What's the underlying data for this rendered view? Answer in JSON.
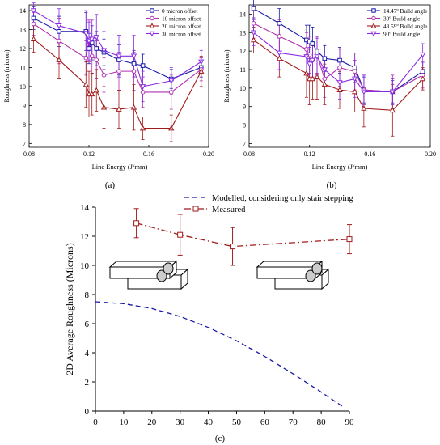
{
  "chart_data": [
    {
      "panel_label": "(a)",
      "type": "line",
      "xlabel": "Line Energy (J/mm)",
      "ylabel": "Roughness (micron)",
      "xlim": [
        0.08,
        0.2
      ],
      "ylim": [
        6.8,
        14.3
      ],
      "xticks": [
        "0.08",
        "0.12",
        "0.16",
        "0.20"
      ],
      "xtick_values": [
        0.08,
        0.12,
        0.16,
        0.2
      ],
      "yticks": [
        "7",
        "8",
        "9",
        "10",
        "11",
        "12",
        "13",
        "14"
      ],
      "ytick_values": [
        7,
        8,
        9,
        10,
        11,
        12,
        13,
        14
      ],
      "legend_position": "top-right",
      "series": [
        {
          "name": "0 micron offset",
          "color": "#1a1aa6",
          "marker": "square",
          "x": [
            0.083,
            0.1,
            0.118,
            0.12,
            0.122,
            0.125,
            0.13,
            0.14,
            0.15,
            0.156,
            0.175,
            0.195
          ],
          "y": [
            13.6,
            12.9,
            12.9,
            12.0,
            12.3,
            12.0,
            11.8,
            11.4,
            11.2,
            11.1,
            10.4,
            11.0
          ],
          "err": [
            0.6,
            0.8,
            1.0,
            0.8,
            0.9,
            0.9,
            0.7,
            0.8,
            0.7,
            0.6,
            0.5,
            0.5
          ]
        },
        {
          "name": "10 micron offset",
          "color": "#b030b0",
          "marker": "circle",
          "x": [
            0.083,
            0.1,
            0.118,
            0.12,
            0.122,
            0.125,
            0.13,
            0.14,
            0.15,
            0.156,
            0.175,
            0.195
          ],
          "y": [
            13.3,
            12.4,
            11.5,
            12.4,
            11.6,
            11.4,
            10.6,
            10.8,
            10.8,
            9.7,
            9.7,
            10.9
          ],
          "err": [
            0.6,
            1.2,
            0.9,
            1.1,
            0.9,
            1.0,
            0.9,
            1.0,
            1.0,
            0.8,
            0.9,
            0.6
          ]
        },
        {
          "name": "20 micron offset",
          "color": "#a01a1a",
          "marker": "triangle",
          "x": [
            0.083,
            0.1,
            0.118,
            0.12,
            0.122,
            0.125,
            0.13,
            0.14,
            0.15,
            0.156,
            0.175,
            0.195
          ],
          "y": [
            12.5,
            11.4,
            10.1,
            9.6,
            9.6,
            9.8,
            8.9,
            8.8,
            8.9,
            7.8,
            7.8,
            10.8
          ],
          "err": [
            0.7,
            1.0,
            1.2,
            1.2,
            1.1,
            1.1,
            1.1,
            1.0,
            1.2,
            0.6,
            0.7,
            0.8
          ]
        },
        {
          "name": "30 micron offset",
          "color": "#8a2be2",
          "marker": "triangle-down",
          "x": [
            0.083,
            0.1,
            0.118,
            0.12,
            0.122,
            0.125,
            0.13,
            0.14,
            0.15,
            0.156,
            0.175,
            0.195
          ],
          "y": [
            14.0,
            13.2,
            12.8,
            12.4,
            12.5,
            12.6,
            11.9,
            11.6,
            11.6,
            10.0,
            10.3,
            11.3
          ],
          "err": [
            0.4,
            0.9,
            1.2,
            1.0,
            1.0,
            1.2,
            1.0,
            1.1,
            1.1,
            0.8,
            0.7,
            0.6
          ]
        }
      ]
    },
    {
      "panel_label": "(b)",
      "type": "line",
      "xlabel": "Line Energy (J/mm)",
      "ylabel": "Roughness (micron)",
      "xlim": [
        0.08,
        0.2
      ],
      "ylim": [
        6.8,
        14.5
      ],
      "xticks": [
        "0.08",
        "0.12",
        "0.16",
        "0.20"
      ],
      "xtick_values": [
        0.08,
        0.12,
        0.16,
        0.2
      ],
      "yticks": [
        "7",
        "8",
        "9",
        "10",
        "11",
        "12",
        "13",
        "14"
      ],
      "ytick_values": [
        7,
        8,
        9,
        10,
        11,
        12,
        13,
        14
      ],
      "legend_position": "top-right",
      "series": [
        {
          "name": "14.47º Build angle",
          "color": "#1a1aa6",
          "marker": "square",
          "x": [
            0.083,
            0.1,
            0.118,
            0.12,
            0.122,
            0.125,
            0.13,
            0.14,
            0.15,
            0.156,
            0.175,
            0.195
          ],
          "y": [
            14.3,
            13.5,
            12.6,
            12.5,
            12.4,
            12.0,
            11.6,
            11.5,
            11.1,
            9.9,
            9.8,
            10.9
          ],
          "err": [
            0.5,
            0.8,
            0.8,
            0.9,
            0.9,
            0.8,
            0.7,
            0.7,
            0.8,
            0.7,
            0.6,
            0.5
          ]
        },
        {
          "name": "30º Build angle",
          "color": "#b030b0",
          "marker": "circle",
          "x": [
            0.083,
            0.1,
            0.118,
            0.12,
            0.122,
            0.125,
            0.13,
            0.14,
            0.15,
            0.156,
            0.175,
            0.195
          ],
          "y": [
            13.5,
            12.8,
            12.1,
            11.8,
            11.5,
            11.8,
            10.5,
            11.1,
            10.9,
            9.9,
            9.8,
            10.7
          ],
          "err": [
            0.8,
            0.9,
            0.9,
            1.0,
            0.9,
            1.0,
            1.0,
            1.0,
            1.0,
            0.8,
            0.9,
            0.7
          ]
        },
        {
          "name": "48.59º Build angle",
          "color": "#a01a1a",
          "marker": "triangle",
          "x": [
            0.083,
            0.1,
            0.118,
            0.12,
            0.122,
            0.125,
            0.13,
            0.14,
            0.15,
            0.156,
            0.175,
            0.195
          ],
          "y": [
            12.6,
            11.6,
            10.8,
            10.5,
            10.5,
            10.6,
            10.2,
            9.9,
            9.8,
            8.9,
            8.8,
            10.5
          ],
          "err": [
            0.7,
            1.0,
            1.3,
            1.4,
            1.1,
            1.2,
            1.1,
            1.0,
            1.1,
            1.0,
            1.4,
            0.6
          ]
        },
        {
          "name": "90º Build angle",
          "color": "#8a2be2",
          "marker": "triangle-down",
          "x": [
            0.083,
            0.1,
            0.118,
            0.12,
            0.122,
            0.125,
            0.13,
            0.14,
            0.15,
            0.156,
            0.175,
            0.195
          ],
          "y": [
            13.0,
            11.9,
            11.7,
            11.3,
            11.5,
            11.7,
            11.0,
            10.3,
            10.5,
            9.8,
            9.8,
            11.8
          ],
          "err": [
            0.7,
            0.9,
            0.9,
            0.9,
            1.0,
            1.0,
            0.9,
            0.9,
            1.0,
            0.9,
            0.7,
            0.6
          ]
        }
      ]
    },
    {
      "panel_label": "(c)",
      "type": "line",
      "xlabel": "",
      "ylabel": "2D Average Roughness (Microns)",
      "xlim": [
        0,
        90
      ],
      "ylim": [
        0,
        14
      ],
      "xticks": [
        "0",
        "10",
        "20",
        "30",
        "40",
        "50",
        "60",
        "70",
        "80",
        "90"
      ],
      "xtick_values": [
        0,
        10,
        20,
        30,
        40,
        50,
        60,
        70,
        80,
        90
      ],
      "yticks": [
        "0",
        "2",
        "4",
        "6",
        "8",
        "10",
        "12",
        "14"
      ],
      "ytick_values": [
        0,
        2,
        4,
        6,
        8,
        10,
        12,
        14
      ],
      "legend_position": "top",
      "series": [
        {
          "name": "Modelled, considering only stair stepping",
          "color": "#1a1aa6",
          "style": "dashed",
          "x": [
            0,
            10,
            20,
            30,
            40,
            50,
            60,
            70,
            80,
            88
          ],
          "y": [
            7.5,
            7.37,
            7.04,
            6.49,
            5.74,
            4.82,
            3.75,
            2.56,
            1.3,
            0.26
          ]
        },
        {
          "name": "Measured",
          "color": "#a01a1a",
          "style": "dashdot",
          "marker": "square",
          "x": [
            14.5,
            30,
            48.6,
            90
          ],
          "y": [
            12.9,
            12.1,
            11.3,
            11.8
          ],
          "err": [
            1.0,
            1.4,
            1.3,
            1.0
          ]
        }
      ]
    }
  ]
}
